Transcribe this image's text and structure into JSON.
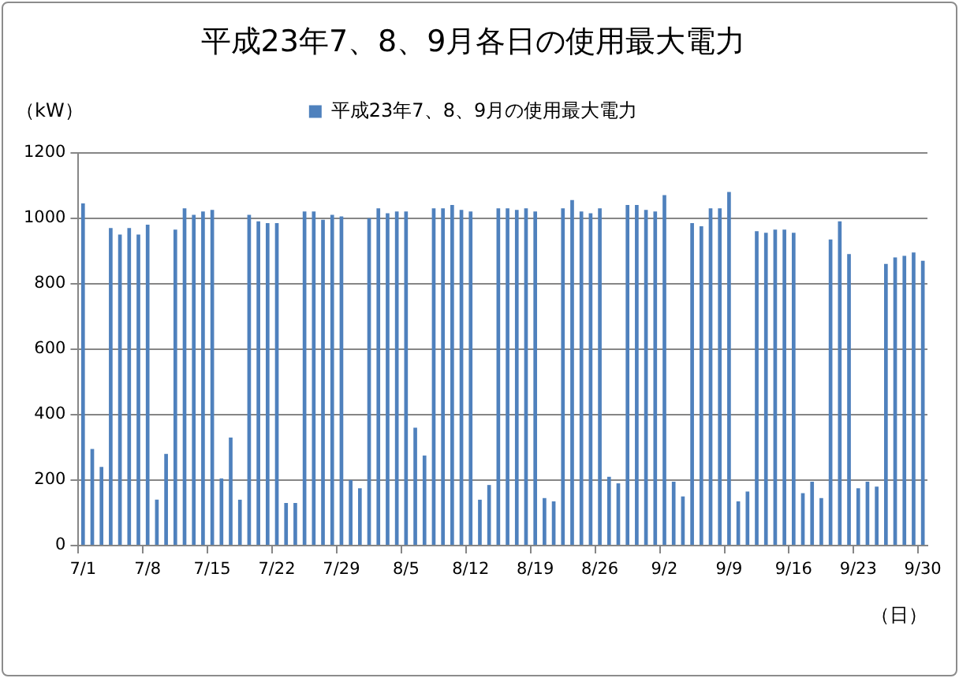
{
  "chart_data": {
    "type": "bar",
    "title": "平成23年7、8、9月各日の使用最大電力",
    "xlabel": "（日）",
    "ylabel": "（kW）",
    "categories": [
      "7/1",
      null,
      null,
      null,
      null,
      null,
      null,
      "7/8",
      null,
      null,
      null,
      null,
      null,
      null,
      "7/15",
      null,
      null,
      null,
      null,
      null,
      null,
      "7/22",
      null,
      null,
      null,
      null,
      null,
      null,
      "7/29",
      null,
      null,
      null,
      null,
      null,
      null,
      "8/5",
      null,
      null,
      null,
      null,
      null,
      null,
      "8/12",
      null,
      null,
      null,
      null,
      null,
      null,
      "8/19",
      null,
      null,
      null,
      null,
      null,
      null,
      "8/26",
      null,
      null,
      null,
      null,
      null,
      null,
      "9/2",
      null,
      null,
      null,
      null,
      null,
      null,
      "9/9",
      null,
      null,
      null,
      null,
      null,
      null,
      "9/16",
      null,
      null,
      null,
      null,
      null,
      null,
      "9/23",
      null,
      null,
      null,
      null,
      null,
      null,
      "9/30"
    ],
    "series": [
      {
        "name": "平成23年7、8、9月の使用最大電力",
        "color": "#4f81bd",
        "values": [
          1045,
          295,
          240,
          970,
          950,
          970,
          950,
          980,
          140,
          280,
          965,
          1030,
          1010,
          1020,
          1025,
          205,
          330,
          140,
          1010,
          990,
          985,
          985,
          130,
          130,
          1020,
          1020,
          995,
          1010,
          1005,
          200,
          175,
          1000,
          1030,
          1015,
          1020,
          1020,
          360,
          275,
          1030,
          1030,
          1040,
          1025,
          1020,
          140,
          185,
          1030,
          1030,
          1025,
          1030,
          1020,
          145,
          135,
          1030,
          1055,
          1020,
          1015,
          1030,
          210,
          190,
          1040,
          1040,
          1025,
          1020,
          1070,
          195,
          150,
          985,
          975,
          1030,
          1030,
          1080,
          135,
          165,
          960,
          955,
          965,
          965,
          955,
          160,
          195,
          145,
          935,
          990,
          890,
          175,
          195,
          180,
          860,
          880,
          885,
          895,
          870
        ]
      }
    ],
    "ylim": [
      0,
      1200
    ],
    "yticks": [
      0,
      200,
      400,
      600,
      800,
      1000,
      1200
    ],
    "grid": "y",
    "legend": "top"
  }
}
